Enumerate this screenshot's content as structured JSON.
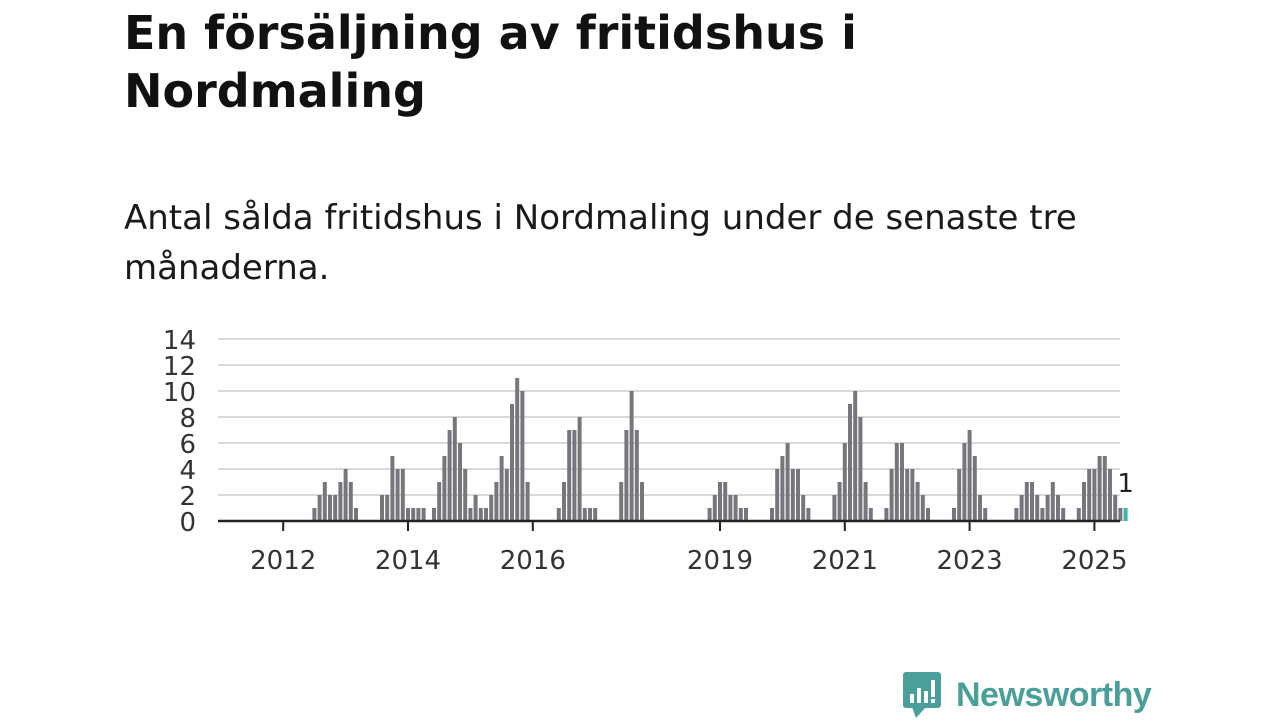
{
  "title": "En försäljning av fritidshus i Nordmaling",
  "subtitle": "Antal sålda fritidshus i Nordmaling under de senaste tre månaderna.",
  "brand": "Newsworthy",
  "colors": {
    "bar": "#76767c",
    "highlight": "#3fb1ab",
    "grid": "#d9d9d9",
    "axis": "#222222",
    "brand": "#4a9f9b"
  },
  "chart_data": {
    "type": "bar",
    "title": "En försäljning av fritidshus i Nordmaling",
    "subtitle": "Antal sålda fritidshus i Nordmaling under de senaste tre månaderna.",
    "xlabel": "",
    "ylabel": "",
    "ylim": [
      0,
      14
    ],
    "yticks": [
      "0",
      "2",
      "4",
      "6",
      "8",
      "10",
      "12",
      "14"
    ],
    "xtick_labels": [
      "2012",
      "2014",
      "2016",
      "2019",
      "2021",
      "2023",
      "2025"
    ],
    "grid": true,
    "start_date": "2011-07",
    "x_unit": "month",
    "values": [
      0,
      0,
      0,
      0,
      0,
      0,
      0,
      0,
      0,
      0,
      0,
      0,
      1,
      2,
      3,
      2,
      2,
      3,
      4,
      3,
      1,
      0,
      0,
      0,
      0,
      2,
      2,
      5,
      4,
      4,
      1,
      1,
      1,
      1,
      0,
      1,
      3,
      5,
      7,
      8,
      6,
      4,
      1,
      2,
      1,
      1,
      2,
      3,
      5,
      4,
      9,
      11,
      10,
      3,
      0,
      0,
      0,
      0,
      0,
      1,
      3,
      7,
      7,
      8,
      1,
      1,
      1,
      0,
      0,
      0,
      0,
      3,
      7,
      10,
      7,
      3,
      0,
      0,
      0,
      0,
      0,
      0,
      0,
      0,
      0,
      0,
      0,
      0,
      1,
      2,
      3,
      3,
      2,
      2,
      1,
      1,
      0,
      0,
      0,
      0,
      1,
      4,
      5,
      6,
      4,
      4,
      2,
      1,
      0,
      0,
      0,
      0,
      2,
      3,
      6,
      9,
      10,
      8,
      3,
      1,
      0,
      0,
      1,
      4,
      6,
      6,
      4,
      4,
      3,
      2,
      1,
      0,
      0,
      0,
      0,
      1,
      4,
      6,
      7,
      5,
      2,
      1,
      0,
      0,
      0,
      0,
      0,
      1,
      2,
      3,
      3,
      2,
      1,
      2,
      3,
      2,
      1,
      0,
      0,
      1,
      3,
      4,
      4,
      5,
      5,
      4,
      2,
      1,
      1
    ],
    "highlight_label": "1",
    "highlight_color": "#3fb1ab"
  }
}
